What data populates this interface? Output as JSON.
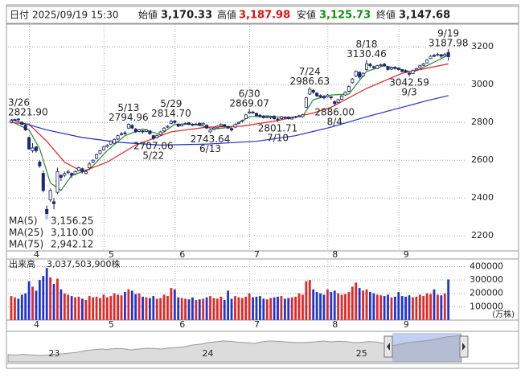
{
  "header": {
    "date_label": "日付",
    "datetime": "2025/09/19 15:30",
    "open_label": "始値",
    "open": "3,170.33",
    "high_label": "高値",
    "high": "3,187.98",
    "low_label": "安値",
    "low": "3,125.73",
    "close_label": "終値",
    "close": "3,147.68",
    "high_color": "#e01010",
    "low_color": "#109010"
  },
  "chart_data": [
    {
      "type": "candlestick",
      "open": [
        2800,
        2812,
        2818,
        2800,
        2785,
        2720,
        2650,
        2670,
        2590,
        2530,
        2340,
        2390,
        2380,
        2430,
        2520,
        2520,
        2535,
        2530,
        2525,
        2545,
        2555,
        2530,
        2560,
        2590,
        2610,
        2635,
        2655,
        2672,
        2685,
        2690,
        2712,
        2740,
        2745,
        2770,
        2785,
        2765,
        2752,
        2755,
        2752,
        2755,
        2730,
        2720,
        2735,
        2755,
        2775,
        2795,
        2808,
        2790,
        2782,
        2792,
        2798,
        2790,
        2788,
        2795,
        2788,
        2785,
        2750,
        2762,
        2772,
        2782,
        2788,
        2778,
        2768,
        2775,
        2795,
        2805,
        2820,
        2850,
        2855,
        2848,
        2838,
        2832,
        2828,
        2825,
        2832,
        2818,
        2820,
        2828,
        2828,
        2818,
        2828,
        2832,
        2830,
        2880,
        2950,
        2970,
        2955,
        2942,
        2938,
        2935,
        2935,
        2910,
        2905,
        2922,
        2945,
        2965,
        3010,
        3045,
        3065,
        3045,
        3080,
        3108,
        3095,
        3085,
        3102,
        3108,
        3095,
        3082,
        3092,
        3088,
        3078,
        3072,
        3060,
        3058,
        3078,
        3090,
        3102,
        3115,
        3138,
        3155,
        3155,
        3158,
        3152,
        3170.33
      ],
      "high": [
        2818,
        2820,
        2821.9,
        2805,
        2790,
        2725,
        2690,
        2675,
        2600,
        2545,
        2360,
        2450,
        2400,
        2560,
        2525,
        2540,
        2550,
        2535,
        2545,
        2565,
        2560,
        2550,
        2590,
        2605,
        2635,
        2655,
        2675,
        2685,
        2705,
        2715,
        2735,
        2750,
        2755,
        2794.96,
        2790,
        2770,
        2765,
        2760,
        2765,
        2758,
        2735,
        2735,
        2755,
        2775,
        2785,
        2814.7,
        2812,
        2795,
        2795,
        2800,
        2802,
        2795,
        2797,
        2800,
        2800,
        2790,
        2765,
        2775,
        2785,
        2795,
        2792,
        2782,
        2772,
        2795,
        2805,
        2815,
        2845,
        2869.07,
        2862,
        2852,
        2845,
        2838,
        2835,
        2835,
        2838,
        2825,
        2835,
        2832,
        2832,
        2830,
        2835,
        2840,
        2845,
        2935,
        2986.63,
        2975,
        2960,
        2948,
        2945,
        2950,
        2940,
        2915,
        2925,
        2945,
        2965,
        2995,
        3035,
        3075,
        3070,
        3065,
        3130.46,
        3115,
        3100,
        3105,
        3112,
        3115,
        3098,
        3095,
        3098,
        3092,
        3082,
        3080,
        3065,
        3080,
        3090,
        3105,
        3115,
        3135,
        3155,
        3162,
        3168,
        3162,
        3168,
        3187.98
      ],
      "low": [
        2795,
        2805,
        2808,
        2785,
        2755,
        2655,
        2640,
        2640,
        2560,
        2430,
        2289,
        2380,
        2340,
        2420,
        2490,
        2510,
        2525,
        2505,
        2520,
        2540,
        2530,
        2525,
        2555,
        2585,
        2605,
        2630,
        2650,
        2665,
        2680,
        2685,
        2705,
        2730,
        2735,
        2765,
        2765,
        2745,
        2748,
        2740,
        2748,
        2735,
        2707.06,
        2715,
        2730,
        2750,
        2770,
        2790,
        2795,
        2775,
        2778,
        2788,
        2785,
        2780,
        2785,
        2780,
        2785,
        2765,
        2743.64,
        2758,
        2768,
        2778,
        2775,
        2765,
        2752,
        2770,
        2790,
        2800,
        2818,
        2845,
        2845,
        2830,
        2825,
        2820,
        2822,
        2818,
        2815,
        2801.71,
        2815,
        2818,
        2815,
        2815,
        2822,
        2828,
        2825,
        2878,
        2945,
        2950,
        2935,
        2928,
        2922,
        2930,
        2920,
        2886,
        2900,
        2918,
        2940,
        2960,
        3005,
        3040,
        3030,
        3040,
        3075,
        3090,
        3080,
        3082,
        3095,
        3095,
        3075,
        3078,
        3080,
        3075,
        3065,
        3062,
        3042.59,
        3055,
        3075,
        3088,
        3098,
        3112,
        3135,
        3145,
        3150,
        3140,
        3148,
        3125.73
      ],
      "close": [
        2810,
        2815,
        2815,
        2790,
        2760,
        2660,
        2665,
        2650,
        2570,
        2440,
        2289,
        2440,
        2370,
        2540,
        2510,
        2530,
        2540,
        2520,
        2540,
        2560,
        2540,
        2540,
        2580,
        2600,
        2630,
        2650,
        2670,
        2680,
        2700,
        2710,
        2730,
        2740,
        2740,
        2790,
        2770,
        2750,
        2760,
        2750,
        2760,
        2740,
        2715,
        2730,
        2750,
        2770,
        2780,
        2805,
        2800,
        2780,
        2790,
        2795,
        2790,
        2785,
        2790,
        2785,
        2795,
        2770,
        2760,
        2770,
        2780,
        2790,
        2780,
        2770,
        2760,
        2790,
        2800,
        2810,
        2840,
        2855,
        2850,
        2835,
        2830,
        2825,
        2830,
        2830,
        2820,
        2815,
        2830,
        2825,
        2820,
        2825,
        2830,
        2835,
        2840,
        2930,
        2975,
        2960,
        2940,
        2935,
        2930,
        2945,
        2930,
        2900,
        2920,
        2940,
        2960,
        2990,
        3030,
        3070,
        3040,
        3060,
        3110,
        3100,
        3090,
        3100,
        3105,
        3100,
        3080,
        3090,
        3085,
        3080,
        3070,
        3070,
        3055,
        3075,
        3085,
        3100,
        3110,
        3130,
        3150,
        3150,
        3160,
        3150,
        3160,
        3147.68
      ],
      "up_color": "#ffffff",
      "down_color": "#1a2a80",
      "edge_color": "#1a2060",
      "xticks": [
        {
          "value": 6,
          "label": "4"
        },
        {
          "value": 27,
          "label": "5"
        },
        {
          "value": 47,
          "label": "6"
        },
        {
          "value": 68,
          "label": "7"
        },
        {
          "value": 90,
          "label": "8"
        },
        {
          "value": 110,
          "label": "9"
        }
      ],
      "ylim": [
        2120,
        3320
      ],
      "yticks": [
        2200,
        2400,
        2600,
        2800,
        3000,
        3200
      ],
      "grid": true,
      "ma": [
        {
          "name": "MA(5)",
          "color": "#2a8a2a",
          "legend_value": "3,156.25",
          "x": [
            0,
            5,
            8,
            11,
            14,
            17,
            22,
            27,
            32,
            37,
            42,
            46,
            52,
            57,
            62,
            67,
            72,
            77,
            82,
            85,
            90,
            95,
            100,
            105,
            110,
            113,
            118,
            123
          ],
          "values": [
            2805,
            2760,
            2660,
            2480,
            2440,
            2520,
            2550,
            2650,
            2730,
            2765,
            2735,
            2790,
            2790,
            2765,
            2775,
            2830,
            2835,
            2825,
            2832,
            2920,
            2945,
            2950,
            3070,
            3100,
            3080,
            3065,
            3110,
            3156.25
          ]
        },
        {
          "name": "MA(25)",
          "color": "#e02020",
          "legend_value": "3,110.00",
          "x": [
            0,
            5,
            10,
            15,
            20,
            27,
            35,
            45,
            55,
            65,
            75,
            85,
            90,
            100,
            110,
            123
          ],
          "values": [
            2800,
            2790,
            2700,
            2590,
            2540,
            2590,
            2680,
            2750,
            2775,
            2780,
            2810,
            2850,
            2880,
            2980,
            3060,
            3110
          ]
        },
        {
          "name": "MA(75)",
          "color": "#2030c0",
          "legend_value": "2,942.12",
          "x": [
            0,
            10,
            20,
            30,
            42,
            55,
            69,
            80,
            90,
            100,
            110,
            117,
            123
          ],
          "values": [
            2815,
            2760,
            2720,
            2695,
            2680,
            2685,
            2700,
            2730,
            2775,
            2830,
            2880,
            2915,
            2942.12
          ]
        }
      ],
      "annotations": [
        {
          "kind": "high",
          "date": "3/26",
          "value": 2821.9,
          "label": "2821.90"
        },
        {
          "kind": "high",
          "date": "5/13",
          "value": 2794.96,
          "label": "2794.96"
        },
        {
          "kind": "low",
          "date": "5/22",
          "value": 2707.06,
          "label": "2707.06"
        },
        {
          "kind": "high",
          "date": "5/29",
          "value": 2814.7,
          "label": "2814.70"
        },
        {
          "kind": "low",
          "date": "6/13",
          "value": 2743.64,
          "label": "2743.64"
        },
        {
          "kind": "high",
          "date": "6/30",
          "value": 2869.07,
          "label": "2869.07"
        },
        {
          "kind": "low",
          "date": "7/10",
          "value": 2801.71,
          "label": "2801.71"
        },
        {
          "kind": "high",
          "date": "7/24",
          "value": 2986.63,
          "label": "2986.63"
        },
        {
          "kind": "low",
          "date": "8/4",
          "value": 2886,
          "label": "2886.00"
        },
        {
          "kind": "high",
          "date": "8/18",
          "value": 3130.46,
          "label": "3130.46"
        },
        {
          "kind": "low",
          "date": "9/3",
          "value": 3042.59,
          "label": "3042.59"
        },
        {
          "kind": "high",
          "date": "9/19",
          "value": 3187.98,
          "label": "3187.98"
        }
      ]
    },
    {
      "type": "bar",
      "title": "出来高",
      "total": "3,037,503,900株",
      "unit": "(万株)",
      "values": [
        180000,
        170000,
        160000,
        190000,
        200000,
        290000,
        250000,
        220000,
        300000,
        330000,
        390000,
        320000,
        270000,
        310000,
        230000,
        200000,
        190000,
        180000,
        170000,
        175000,
        160000,
        150000,
        180000,
        170000,
        175000,
        165000,
        190000,
        170000,
        180000,
        200000,
        190000,
        185000,
        210000,
        230000,
        220000,
        195000,
        200000,
        175000,
        170000,
        165000,
        180000,
        160000,
        165000,
        190000,
        180000,
        240000,
        230000,
        170000,
        165000,
        160000,
        155000,
        170000,
        150000,
        155000,
        160000,
        170000,
        180000,
        165000,
        160000,
        175000,
        150000,
        220000,
        160000,
        180000,
        170000,
        165000,
        175000,
        200000,
        170000,
        175000,
        180000,
        160000,
        155000,
        165000,
        170000,
        175000,
        180000,
        160000,
        165000,
        170000,
        175000,
        200000,
        190000,
        290000,
        300000,
        230000,
        210000,
        200000,
        190000,
        230000,
        210000,
        220000,
        200000,
        190000,
        195000,
        210000,
        250000,
        280000,
        240000,
        220000,
        230000,
        210000,
        200000,
        190000,
        185000,
        180000,
        190000,
        170000,
        175000,
        210000,
        180000,
        175000,
        185000,
        170000,
        175000,
        190000,
        180000,
        200000,
        195000,
        230000,
        190000,
        185000,
        200000,
        303750
      ],
      "up_color": "#e02828",
      "down_color": "#2035d0",
      "ylim": [
        0,
        445000
      ],
      "yticks": [
        100000,
        200000,
        300000,
        400000
      ],
      "grid": true
    },
    {
      "type": "area",
      "color": "#9a9a9a",
      "selection_color": "#8fa8e8",
      "values": [
        1950,
        1930,
        1960,
        1940,
        1900,
        1920,
        1980,
        2000,
        2050,
        2100,
        2200,
        2250,
        2300,
        2280,
        2330,
        2320,
        2250,
        2300,
        2350,
        2330,
        2300,
        2370,
        2400,
        2450,
        2550,
        2600,
        2700,
        2750,
        2800,
        2780,
        2720,
        2700,
        2650,
        2750,
        2800,
        2780,
        2750,
        2720,
        2700,
        2720,
        2750,
        2800,
        2750,
        2780,
        2760,
        2700,
        2720,
        2760,
        2740,
        2650,
        2500,
        2600,
        2700,
        2750,
        2800,
        2850,
        2950,
        3050,
        3100,
        3150
      ],
      "ylim": [
        1500,
        3300
      ],
      "xticks": [
        {
          "value": 6,
          "label": "23"
        },
        {
          "value": 26,
          "label": "24"
        },
        {
          "value": 46,
          "label": "25"
        }
      ]
    }
  ]
}
